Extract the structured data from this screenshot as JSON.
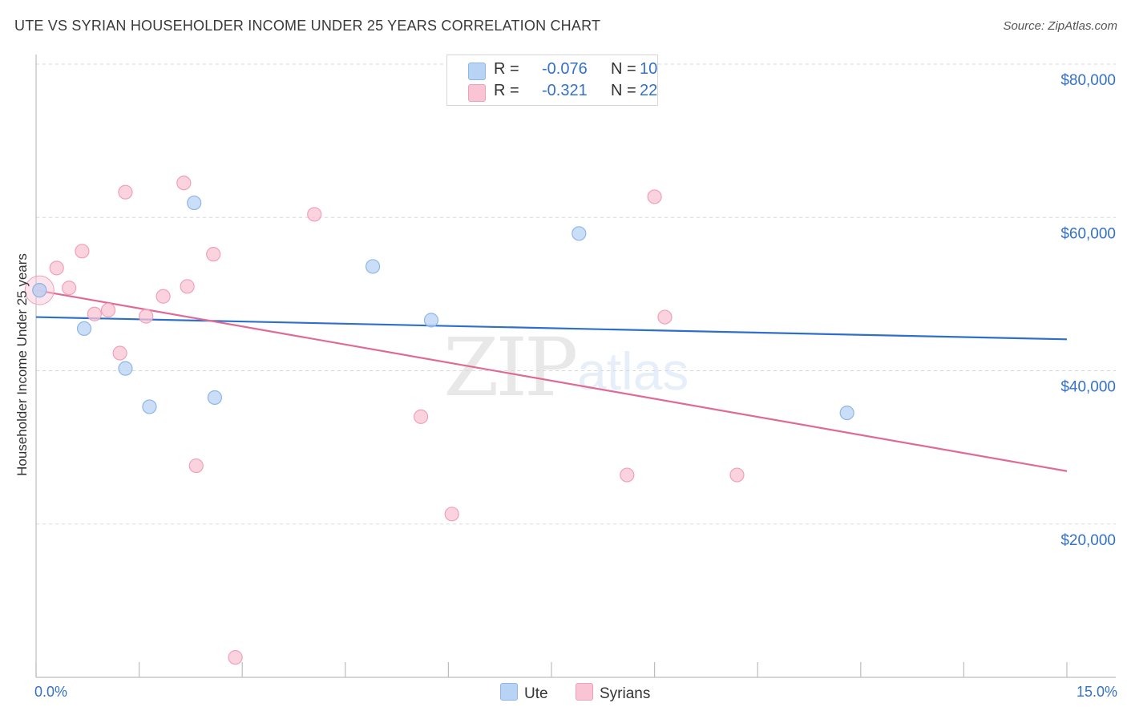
{
  "title": "UTE VS SYRIAN HOUSEHOLDER INCOME UNDER 25 YEARS CORRELATION CHART",
  "source": "Source: ZipAtlas.com",
  "watermark": {
    "zip": "ZIP",
    "atlas": "atlas"
  },
  "colors": {
    "ute_fill": "#b8d3f4",
    "ute_stroke": "#8fb6e6",
    "ute_line": "#2e6fcc",
    "syr_fill": "#f9c4d4",
    "syr_stroke": "#f0a0ba",
    "syr_line": "#e06a96",
    "axis_text": "#3471c8",
    "grid": "#d8d8d8"
  },
  "legend": {
    "rows": [
      {
        "r_label": "R =",
        "r_value": "-0.076",
        "n_label": "N =",
        "n_value": "10"
      },
      {
        "r_label": "R =",
        "r_value": "-0.321",
        "n_label": "N =",
        "n_value": "22"
      }
    ]
  },
  "bottom_legend": {
    "ute": "Ute",
    "syrians": "Syrians"
  },
  "axis": {
    "y_title": "Householder Income Under 25 years",
    "x_min_label": "0.0%",
    "x_max_label": "15.0%"
  },
  "chart_data": {
    "type": "scatter",
    "title": "UTE VS SYRIAN HOUSEHOLDER INCOME UNDER 25 YEARS CORRELATION CHART",
    "xlabel": "",
    "ylabel": "Householder Income Under 25 years",
    "xlim": [
      0,
      15
    ],
    "ylim": [
      0,
      80000
    ],
    "y_ticks": [
      {
        "value": 20000,
        "label": "$20,000"
      },
      {
        "value": 40000,
        "label": "$40,000"
      },
      {
        "value": 60000,
        "label": "$60,000"
      },
      {
        "value": 80000,
        "label": "$80,000"
      }
    ],
    "x_tick_values": [
      0,
      1.5,
      3,
      4.5,
      6,
      7.5,
      9,
      10.5,
      12,
      13.5,
      15
    ],
    "series": [
      {
        "name": "Ute",
        "r": -0.076,
        "n": 10,
        "points": [
          {
            "x": 0.05,
            "y": 50500
          },
          {
            "x": 0.7,
            "y": 45500
          },
          {
            "x": 1.3,
            "y": 40300
          },
          {
            "x": 1.65,
            "y": 35300
          },
          {
            "x": 2.3,
            "y": 61900
          },
          {
            "x": 2.6,
            "y": 36500
          },
          {
            "x": 4.9,
            "y": 53600
          },
          {
            "x": 5.75,
            "y": 46600
          },
          {
            "x": 7.9,
            "y": 57900
          },
          {
            "x": 11.8,
            "y": 34500
          }
        ],
        "trend": {
          "x0": 0,
          "y0": 47000,
          "x1": 15,
          "y1": 44100
        }
      },
      {
        "name": "Syrians",
        "r": -0.321,
        "n": 22,
        "points": [
          {
            "x": 0.05,
            "y": 50500
          },
          {
            "x": 0.3,
            "y": 53400
          },
          {
            "x": 0.48,
            "y": 50800
          },
          {
            "x": 0.67,
            "y": 55600
          },
          {
            "x": 0.85,
            "y": 47400
          },
          {
            "x": 1.05,
            "y": 47900
          },
          {
            "x": 1.22,
            "y": 42300
          },
          {
            "x": 1.3,
            "y": 63300
          },
          {
            "x": 1.6,
            "y": 47100
          },
          {
            "x": 1.85,
            "y": 49700
          },
          {
            "x": 2.15,
            "y": 64500
          },
          {
            "x": 2.2,
            "y": 51000
          },
          {
            "x": 2.33,
            "y": 27600
          },
          {
            "x": 2.58,
            "y": 55200
          },
          {
            "x": 2.9,
            "y": 2600
          },
          {
            "x": 4.05,
            "y": 60400
          },
          {
            "x": 5.6,
            "y": 34000
          },
          {
            "x": 6.05,
            "y": 21300
          },
          {
            "x": 8.6,
            "y": 26400
          },
          {
            "x": 9.0,
            "y": 62700
          },
          {
            "x": 9.15,
            "y": 47000
          },
          {
            "x": 10.2,
            "y": 26400
          }
        ],
        "trend": {
          "x0": 0,
          "y0": 50500,
          "x1": 15,
          "y1": 26900
        }
      }
    ]
  }
}
